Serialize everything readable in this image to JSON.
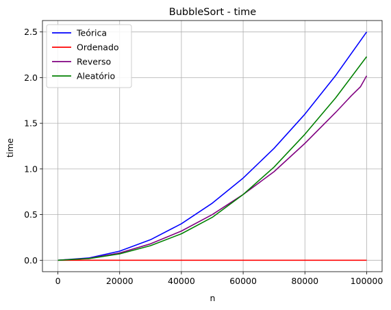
{
  "chart_data": {
    "type": "line",
    "title": "BubbleSort - time",
    "xlabel": "n",
    "ylabel": "time",
    "xlim": [
      -5000,
      105000
    ],
    "ylim": [
      -0.125,
      2.625
    ],
    "xticks": [
      0,
      20000,
      40000,
      60000,
      80000,
      100000
    ],
    "xtick_labels": [
      "0",
      "20000",
      "40000",
      "60000",
      "80000",
      "100000"
    ],
    "yticks": [
      0.0,
      0.5,
      1.0,
      1.5,
      2.0,
      2.5
    ],
    "ytick_labels": [
      "0.0",
      "0.5",
      "1.0",
      "1.5",
      "2.0",
      "2.5"
    ],
    "grid": true,
    "legend_position": "top-left",
    "series": [
      {
        "name": "Teórica",
        "color": "#0000ff",
        "x": [
          0,
          10000,
          20000,
          30000,
          40000,
          50000,
          60000,
          70000,
          80000,
          90000,
          100000
        ],
        "values": [
          0.0,
          0.025,
          0.1,
          0.225,
          0.4,
          0.625,
          0.9,
          1.225,
          1.6,
          2.025,
          2.5
        ]
      },
      {
        "name": "Ordenado",
        "color": "#ff0000",
        "x": [
          0,
          10000,
          20000,
          30000,
          40000,
          50000,
          60000,
          70000,
          80000,
          90000,
          100000
        ],
        "values": [
          0.0,
          0.0,
          0.0,
          0.0,
          0.0,
          0.0,
          0.0,
          0.0,
          0.0,
          0.0,
          0.0
        ]
      },
      {
        "name": "Reverso",
        "color": "#800080",
        "x": [
          0,
          10000,
          20000,
          30000,
          40000,
          50000,
          60000,
          70000,
          80000,
          90000,
          95000,
          98000,
          100000
        ],
        "values": [
          0.0,
          0.02,
          0.08,
          0.18,
          0.32,
          0.5,
          0.72,
          0.97,
          1.28,
          1.62,
          1.8,
          1.9,
          2.02
        ]
      },
      {
        "name": "Aleatório",
        "color": "#008000",
        "x": [
          0,
          10000,
          20000,
          30000,
          40000,
          50000,
          60000,
          70000,
          80000,
          90000,
          100000
        ],
        "values": [
          0.0,
          0.018,
          0.07,
          0.16,
          0.29,
          0.47,
          0.72,
          1.02,
          1.38,
          1.78,
          2.23
        ]
      }
    ]
  }
}
